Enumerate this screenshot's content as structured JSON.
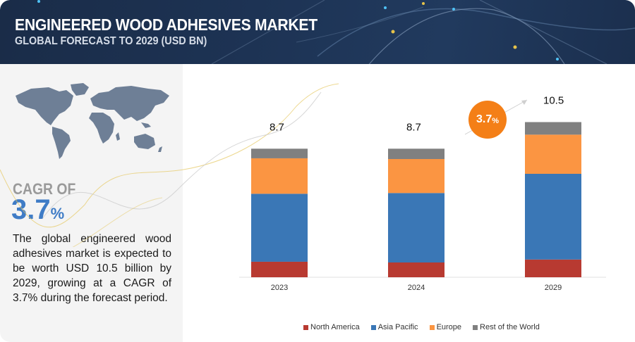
{
  "header": {
    "title": "ENGINEERED WOOD ADHESIVES MARKET",
    "subtitle": "GLOBAL FORECAST TO 2029 (USD BN)"
  },
  "left_panel": {
    "map_icon": "world-map-icon",
    "cagr_label": "CAGR OF",
    "cagr_value": "3.7",
    "cagr_unit": "%",
    "description": "The global engineered wood adhesives market is expected to be worth USD 10.5 billion by 2029, growing at a CAGR of 3.7% during the forecast period."
  },
  "badge": {
    "value": "3.7",
    "unit": "%"
  },
  "colors": {
    "header_bg": "#1d3354",
    "accent_blue": "#3f7cc6",
    "badge_orange": "#f47f17"
  },
  "chart_data": {
    "type": "bar",
    "stacked": true,
    "title": "ENGINEERED WOOD ADHESIVES MARKET",
    "subtitle": "GLOBAL FORECAST TO 2029 (USD BN)",
    "xlabel": "",
    "ylabel": "",
    "categories": [
      "2023",
      "2024",
      "2029"
    ],
    "totals": [
      "8.7",
      "8.7",
      "10.5"
    ],
    "series": [
      {
        "name": "North America",
        "color": "#b83a31",
        "values": [
          1.05,
          1.0,
          1.2
        ]
      },
      {
        "name": "Asia Pacific",
        "color": "#3a77b6",
        "values": [
          4.6,
          4.7,
          5.8
        ]
      },
      {
        "name": "Europe",
        "color": "#fb9542",
        "values": [
          2.4,
          2.3,
          2.65
        ]
      },
      {
        "name": "Rest of the World",
        "color": "#808080",
        "values": [
          0.65,
          0.7,
          0.85
        ]
      }
    ],
    "ylim": [
      0,
      10.5
    ],
    "grid": false,
    "legend_position": "bottom",
    "annotation": "3.7%"
  }
}
